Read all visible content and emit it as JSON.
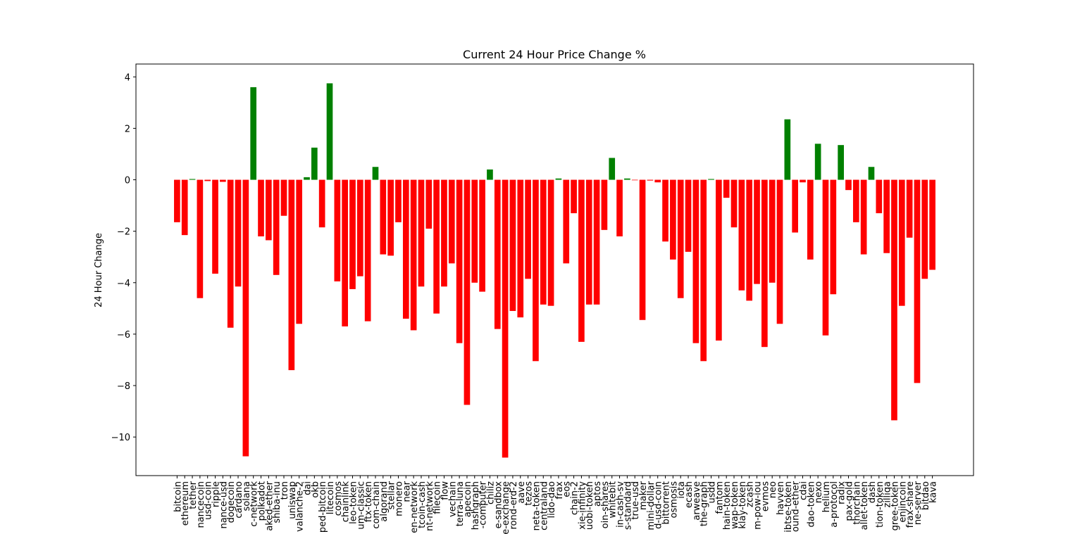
{
  "chart_data": {
    "type": "bar",
    "title": "Current 24 Hour Price Change %",
    "y_label": "24 Hour Change",
    "positive_color": "green",
    "negative_color": "red",
    "categories": [
      "bitcoin",
      "ethereum",
      "tether",
      "nancecoin",
      "usd-coin",
      "ripple",
      "nance-usd",
      "dogecoin",
      "cardano",
      "solana",
      "c-network",
      "polkadot",
      "aked-ether",
      "shiba-inu",
      "tron",
      "uniswap",
      "valanche-2",
      "dai",
      "okb",
      "ped-bitcoin",
      "litecoin",
      "cosmos",
      "chainlink",
      "leo-token",
      "um-classic",
      "ftx-token",
      "com-chain",
      "algorand",
      "stellar",
      "monero",
      "near",
      "en-network",
      "tcoin-cash",
      "nt-network",
      "filecoin",
      "flow",
      "vechain",
      "terra-luna",
      "apecoin",
      "hashgraph",
      "-computer",
      "chiliz",
      "e-sandbox",
      "e-exchange",
      "rond-erd-2",
      "aave",
      "tezos",
      "neta-token",
      "centraland",
      "lido-dao",
      "frax",
      "eos",
      "chain-2",
      "xie-infinity",
      "uobi-token",
      "aptos",
      "oin-shares",
      "whitebit",
      "in-cash-sv",
      "s-standard",
      "true-usd",
      "maker",
      "mini-dollar",
      "d-usd-coin",
      "bittorrent",
      "osmosis",
      "iota",
      "ecash",
      "arweave",
      "the-graph",
      "usdd",
      "fantom",
      "hain-token",
      "wap-token",
      "klay-token",
      "zcash",
      "m-pow-iou",
      "evmos",
      "neo",
      "havven",
      "ibtse-token",
      "ound-ether",
      "cdai",
      "dao-token",
      "nexo",
      "helium",
      "a-protocol",
      "radix",
      "pax-gold",
      "thorchain",
      "allet-token",
      "dash",
      "tion-token",
      "zilliqa",
      "gree-token",
      "enjincoin",
      "frax-share",
      "ne-server",
      "bitdao",
      "kava"
    ],
    "values": [
      -1.65,
      -2.15,
      0.03,
      -4.6,
      -0.05,
      -3.65,
      -0.08,
      -5.75,
      -4.15,
      -10.75,
      3.6,
      -2.2,
      -2.35,
      -3.7,
      -1.4,
      -7.4,
      -5.6,
      0.1,
      1.25,
      -1.85,
      3.75,
      -3.95,
      -5.7,
      -4.25,
      -3.75,
      -5.5,
      0.5,
      -2.9,
      -2.95,
      -1.65,
      -5.4,
      -5.85,
      -4.15,
      -1.9,
      -5.2,
      -4.15,
      -3.25,
      -6.35,
      -8.75,
      -4.0,
      -4.35,
      0.4,
      -5.8,
      -10.8,
      -5.1,
      -5.35,
      -3.85,
      -7.05,
      -4.85,
      -4.9,
      0.05,
      -3.25,
      -1.3,
      -6.3,
      -4.85,
      -4.85,
      -1.95,
      0.85,
      -2.2,
      0.05,
      -0.02,
      -5.45,
      -0.03,
      -0.1,
      -2.4,
      -3.1,
      -4.6,
      -2.8,
      -6.35,
      -7.05,
      0.03,
      -6.25,
      -0.7,
      -1.85,
      -4.3,
      -4.7,
      -4.05,
      -6.5,
      -4.0,
      -5.6,
      2.35,
      -2.05,
      -0.1,
      -3.1,
      1.4,
      -6.05,
      -4.45,
      1.35,
      -0.4,
      -1.65,
      -2.9,
      0.5,
      -1.3,
      -2.85,
      -9.35,
      -4.9,
      -2.25,
      -7.9,
      -3.85,
      -3.5
    ],
    "ylim": [
      -11.5,
      4.5
    ],
    "yticks": [
      {
        "value": -10,
        "label": "−10"
      },
      {
        "value": -8,
        "label": "−8"
      },
      {
        "value": -6,
        "label": "−6"
      },
      {
        "value": -4,
        "label": "−4"
      },
      {
        "value": -2,
        "label": "−2"
      },
      0,
      2,
      4
    ]
  }
}
